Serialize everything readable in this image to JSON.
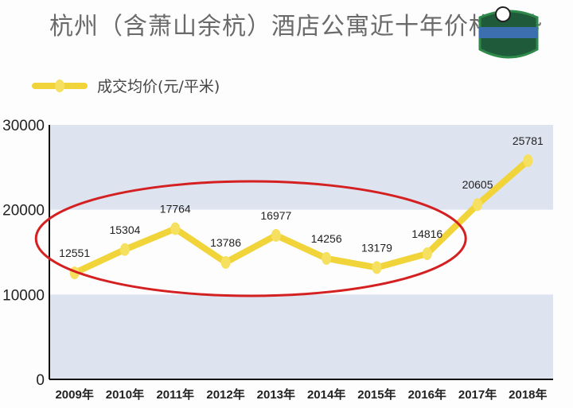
{
  "chart_data": {
    "type": "line",
    "title": "杭州（含萧山余杭）酒店公寓近十年价格走势",
    "categories": [
      "2009年",
      "2010年",
      "2011年",
      "2012年",
      "2013年",
      "2014年",
      "2015年",
      "2016年",
      "2017年",
      "2018年"
    ],
    "series": [
      {
        "name": "成交均价(元/平米)",
        "values": [
          12551,
          15304,
          17764,
          13786,
          16977,
          14256,
          13179,
          14816,
          20605,
          25781
        ],
        "color": "#f0d43a"
      }
    ],
    "yticks": [
      "0",
      "10000",
      "20000",
      "30000"
    ],
    "ylim": [
      0,
      30000
    ],
    "legend": "top-left",
    "band_color": "#dde3ef",
    "highlight": {
      "shape": "ellipse",
      "color": "#d42020",
      "covers": [
        "2009年",
        "2016年"
      ]
    }
  }
}
